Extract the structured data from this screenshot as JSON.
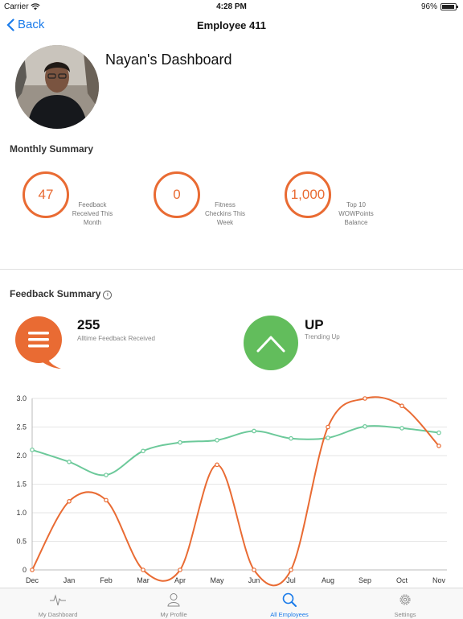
{
  "status_bar": {
    "carrier": "Carrier",
    "time": "4:28 PM",
    "battery": "96%",
    "battery_level": 0.96
  },
  "nav": {
    "back_label": "Back",
    "title": "Employee 411"
  },
  "profile": {
    "dashboard_title": "Nayan's Dashboard"
  },
  "monthly_summary": {
    "title": "Monthly Summary",
    "items": [
      {
        "value": "47",
        "label_lines": [
          "Feedback",
          "Received This",
          "Month"
        ]
      },
      {
        "value": "0",
        "label_lines": [
          "Fitness",
          "Checkins This",
          "Week"
        ]
      },
      {
        "value": "1,000",
        "label_lines": [
          "Top 10",
          "WOWPoints",
          "Balance"
        ]
      }
    ]
  },
  "feedback_summary": {
    "title": "Feedback Summary",
    "info_glyph": "i",
    "alltime_value": "255",
    "alltime_label": "Alltime Feedback Received",
    "trend_value": "UP",
    "trend_label": "Trending Up",
    "colors": {
      "orange": "#e96b33",
      "green": "#62bd5c"
    }
  },
  "chart_data": {
    "type": "line",
    "categories": [
      "Dec",
      "Jan",
      "Feb",
      "Mar",
      "Apr",
      "May",
      "Jun",
      "Jul",
      "Aug",
      "Sep",
      "Oct",
      "Nov"
    ],
    "yticks": [
      "0",
      "0.5",
      "1.0",
      "1.5",
      "2.0",
      "2.5",
      "3.0"
    ],
    "ylim": [
      0,
      3.0
    ],
    "grid": true,
    "series": [
      {
        "color": "#6cc99a",
        "values": [
          2.1,
          1.89,
          1.66,
          2.08,
          2.23,
          2.27,
          2.43,
          2.3,
          2.31,
          2.51,
          2.48,
          2.4
        ]
      },
      {
        "color": "#e96b33",
        "values": [
          0,
          1.2,
          1.22,
          0,
          0,
          1.84,
          0,
          0,
          2.5,
          3.0,
          2.87,
          2.17
        ]
      }
    ]
  },
  "tabs": [
    {
      "label": "My Dashboard",
      "icon": "pulse-icon",
      "active": false
    },
    {
      "label": "My Profile",
      "icon": "person-icon",
      "active": false
    },
    {
      "label": "All Employees",
      "icon": "search-icon",
      "active": true
    },
    {
      "label": "Settings",
      "icon": "gear-icon",
      "active": false
    }
  ]
}
